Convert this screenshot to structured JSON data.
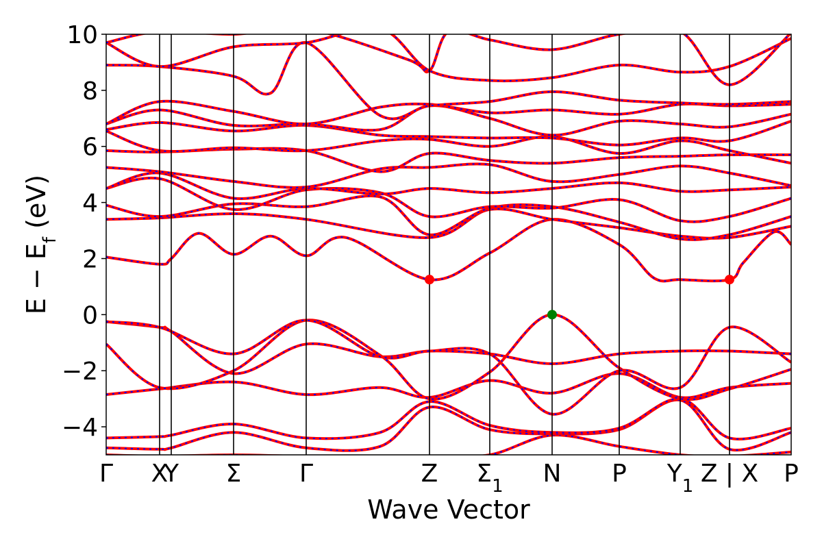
{
  "chart_data": {
    "type": "line",
    "title": "",
    "xlabel": "Wave Vector",
    "ylabel": "E − E",
    "ylabel_subscript": "f",
    "ylabel_unit": " (eV)",
    "ylim": [
      -5,
      10
    ],
    "xlim": [
      0,
      1
    ],
    "grid": false,
    "yticks": [
      {
        "value": -4,
        "label": "−4"
      },
      {
        "value": -2,
        "label": "−2"
      },
      {
        "value": 0,
        "label": "0"
      },
      {
        "value": 2,
        "label": "2"
      },
      {
        "value": 4,
        "label": "4"
      },
      {
        "value": 6,
        "label": "6"
      },
      {
        "value": 8,
        "label": "8"
      },
      {
        "value": 10,
        "label": "10"
      }
    ],
    "kpoints": [
      {
        "x": 0.0,
        "label": "Γ"
      },
      {
        "x": 0.078,
        "label": "X"
      },
      {
        "x": 0.095,
        "label": "Y"
      },
      {
        "x": 0.186,
        "label": "Σ"
      },
      {
        "x": 0.292,
        "label": "Γ"
      },
      {
        "x": 0.472,
        "label": "Z"
      },
      {
        "x": 0.56,
        "label": "Σ",
        "sub": "1"
      },
      {
        "x": 0.651,
        "label": "N"
      },
      {
        "x": 0.749,
        "label": "P"
      },
      {
        "x": 0.838,
        "label": "Y",
        "sub": "1"
      },
      {
        "x": 0.91,
        "label": "Z | X"
      },
      {
        "x": 1.0,
        "label": "P"
      }
    ],
    "series_colors": {
      "red": "#ff0000",
      "blue": "#0000ff"
    },
    "markers": [
      {
        "x": 0.472,
        "y": 1.25,
        "color": "#ff0000"
      },
      {
        "x": 0.91,
        "y": 1.25,
        "color": "#ff0000"
      },
      {
        "x": 0.651,
        "y": 0.0,
        "color": "#008000"
      }
    ],
    "bands": [
      [
        [
          0,
          -5.0
        ],
        [
          0.078,
          -5.05
        ],
        [
          0.186,
          -5.0
        ],
        [
          0.292,
          -5.05
        ],
        [
          0.472,
          -5.05
        ],
        [
          0.56,
          -5.0
        ],
        [
          0.651,
          -4.3
        ],
        [
          0.749,
          -4.7
        ],
        [
          0.838,
          -5.0
        ],
        [
          0.91,
          -5.05
        ],
        [
          1.0,
          -4.9
        ]
      ],
      [
        [
          0,
          -4.75
        ],
        [
          0.078,
          -4.8
        ],
        [
          0.095,
          -4.75
        ],
        [
          0.186,
          -4.2
        ],
        [
          0.292,
          -4.75
        ],
        [
          0.4,
          -4.7
        ],
        [
          0.472,
          -3.3
        ],
        [
          0.56,
          -4.1
        ],
        [
          0.651,
          -4.25
        ],
        [
          0.749,
          -4.1
        ],
        [
          0.838,
          -3.05
        ],
        [
          0.91,
          -4.8
        ],
        [
          1.0,
          -4.2
        ]
      ],
      [
        [
          0,
          -4.4
        ],
        [
          0.078,
          -4.35
        ],
        [
          0.095,
          -4.3
        ],
        [
          0.186,
          -3.9
        ],
        [
          0.292,
          -4.4
        ],
        [
          0.4,
          -4.2
        ],
        [
          0.472,
          -3.1
        ],
        [
          0.56,
          -3.95
        ],
        [
          0.651,
          -4.2
        ],
        [
          0.749,
          -4.05
        ],
        [
          0.838,
          -3.0
        ],
        [
          0.91,
          -4.4
        ],
        [
          1.0,
          -4.05
        ]
      ],
      [
        [
          0,
          -2.85
        ],
        [
          0.078,
          -2.65
        ],
        [
          0.186,
          -2.4
        ],
        [
          0.292,
          -2.85
        ],
        [
          0.4,
          -2.6
        ],
        [
          0.472,
          -2.95
        ],
        [
          0.56,
          -2.35
        ],
        [
          0.651,
          -2.8
        ],
        [
          0.749,
          -2.1
        ],
        [
          0.838,
          -2.95
        ],
        [
          0.91,
          -2.6
        ],
        [
          1.0,
          -2.45
        ]
      ],
      [
        [
          0,
          -1.05
        ],
        [
          0.078,
          -2.6
        ],
        [
          0.186,
          -2.0
        ],
        [
          0.292,
          -0.2
        ],
        [
          0.4,
          -1.45
        ],
        [
          0.472,
          -3.0
        ],
        [
          0.56,
          -2.05
        ],
        [
          0.651,
          0.0
        ],
        [
          0.749,
          -1.9
        ],
        [
          0.838,
          -3.0
        ],
        [
          0.91,
          -2.65
        ],
        [
          1.0,
          -1.95
        ]
      ],
      [
        [
          0,
          -0.25
        ],
        [
          0.078,
          -0.45
        ],
        [
          0.095,
          -0.6
        ],
        [
          0.186,
          -2.1
        ],
        [
          0.292,
          -1.05
        ],
        [
          0.4,
          -1.5
        ],
        [
          0.472,
          -1.3
        ],
        [
          0.56,
          -1.4
        ],
        [
          0.651,
          -1.75
        ],
        [
          0.749,
          -1.4
        ],
        [
          0.838,
          -1.3
        ],
        [
          0.91,
          -1.3
        ],
        [
          1.0,
          -1.4
        ]
      ],
      [
        [
          0,
          -0.25
        ],
        [
          0.078,
          -0.45
        ],
        [
          0.186,
          -1.4
        ],
        [
          0.292,
          -0.2
        ],
        [
          0.4,
          -1.5
        ],
        [
          0.472,
          -1.3
        ],
        [
          0.56,
          -1.4
        ],
        [
          0.651,
          -3.55
        ],
        [
          0.749,
          -2.0
        ],
        [
          0.838,
          -2.6
        ],
        [
          0.91,
          -0.45
        ],
        [
          1.0,
          -1.7
        ]
      ],
      [
        [
          0,
          2.05
        ],
        [
          0.078,
          1.8
        ],
        [
          0.095,
          2.0
        ],
        [
          0.135,
          2.9
        ],
        [
          0.186,
          2.15
        ],
        [
          0.24,
          2.8
        ],
        [
          0.292,
          2.1
        ],
        [
          0.35,
          2.75
        ],
        [
          0.472,
          1.25
        ],
        [
          0.56,
          2.2
        ],
        [
          0.651,
          3.4
        ],
        [
          0.749,
          2.5
        ],
        [
          0.8,
          1.3
        ],
        [
          0.838,
          1.25
        ],
        [
          0.91,
          1.25
        ],
        [
          0.93,
          1.85
        ],
        [
          0.975,
          2.95
        ],
        [
          1.0,
          2.5
        ]
      ],
      [
        [
          0,
          3.4
        ],
        [
          0.078,
          3.45
        ],
        [
          0.186,
          3.6
        ],
        [
          0.292,
          3.4
        ],
        [
          0.472,
          2.75
        ],
        [
          0.56,
          3.75
        ],
        [
          0.651,
          3.4
        ],
        [
          0.749,
          3.1
        ],
        [
          0.838,
          2.8
        ],
        [
          0.91,
          2.75
        ],
        [
          1.0,
          3.15
        ]
      ],
      [
        [
          0,
          3.9
        ],
        [
          0.078,
          3.5
        ],
        [
          0.186,
          3.95
        ],
        [
          0.292,
          3.85
        ],
        [
          0.4,
          4.2
        ],
        [
          0.472,
          2.85
        ],
        [
          0.56,
          3.8
        ],
        [
          0.651,
          3.85
        ],
        [
          0.749,
          3.3
        ],
        [
          0.838,
          2.7
        ],
        [
          0.91,
          2.85
        ],
        [
          1.0,
          3.5
        ]
      ],
      [
        [
          0,
          4.5
        ],
        [
          0.078,
          4.85
        ],
        [
          0.186,
          3.75
        ],
        [
          0.292,
          4.45
        ],
        [
          0.4,
          4.35
        ],
        [
          0.472,
          3.5
        ],
        [
          0.56,
          3.85
        ],
        [
          0.651,
          3.8
        ],
        [
          0.749,
          4.1
        ],
        [
          0.838,
          3.35
        ],
        [
          0.91,
          3.5
        ],
        [
          1.0,
          4.15
        ]
      ],
      [
        [
          0,
          4.5
        ],
        [
          0.078,
          5.05
        ],
        [
          0.186,
          4.15
        ],
        [
          0.292,
          4.5
        ],
        [
          0.4,
          4.3
        ],
        [
          0.472,
          4.5
        ],
        [
          0.56,
          4.35
        ],
        [
          0.651,
          4.5
        ],
        [
          0.749,
          4.7
        ],
        [
          0.838,
          4.4
        ],
        [
          0.91,
          4.45
        ],
        [
          1.0,
          4.55
        ]
      ],
      [
        [
          0,
          5.25
        ],
        [
          0.078,
          5.1
        ],
        [
          0.186,
          4.75
        ],
        [
          0.292,
          4.55
        ],
        [
          0.4,
          5.2
        ],
        [
          0.472,
          5.25
        ],
        [
          0.56,
          5.35
        ],
        [
          0.651,
          4.75
        ],
        [
          0.749,
          5.0
        ],
        [
          0.838,
          5.3
        ],
        [
          0.91,
          5.05
        ],
        [
          1.0,
          4.6
        ]
      ],
      [
        [
          0,
          5.85
        ],
        [
          0.078,
          5.8
        ],
        [
          0.186,
          5.9
        ],
        [
          0.292,
          5.85
        ],
        [
          0.4,
          5.1
        ],
        [
          0.472,
          5.75
        ],
        [
          0.56,
          5.5
        ],
        [
          0.651,
          5.4
        ],
        [
          0.749,
          5.6
        ],
        [
          0.838,
          5.65
        ],
        [
          0.91,
          5.7
        ],
        [
          1.0,
          5.7
        ]
      ],
      [
        [
          0,
          6.55
        ],
        [
          0.078,
          5.85
        ],
        [
          0.186,
          5.95
        ],
        [
          0.292,
          5.85
        ],
        [
          0.4,
          6.2
        ],
        [
          0.472,
          6.25
        ],
        [
          0.56,
          6.0
        ],
        [
          0.651,
          6.35
        ],
        [
          0.749,
          5.75
        ],
        [
          0.838,
          6.2
        ],
        [
          0.91,
          5.85
        ],
        [
          1.0,
          5.4
        ]
      ],
      [
        [
          0,
          6.6
        ],
        [
          0.078,
          6.85
        ],
        [
          0.186,
          6.55
        ],
        [
          0.292,
          6.75
        ],
        [
          0.4,
          6.4
        ],
        [
          0.472,
          6.35
        ],
        [
          0.56,
          6.3
        ],
        [
          0.651,
          6.3
        ],
        [
          0.749,
          6.05
        ],
        [
          0.838,
          6.3
        ],
        [
          0.91,
          6.2
        ],
        [
          1.0,
          6.9
        ]
      ],
      [
        [
          0,
          6.8
        ],
        [
          0.078,
          7.3
        ],
        [
          0.186,
          6.75
        ],
        [
          0.292,
          6.8
        ],
        [
          0.4,
          6.6
        ],
        [
          0.472,
          7.45
        ],
        [
          0.56,
          7.0
        ],
        [
          0.651,
          6.4
        ],
        [
          0.749,
          6.9
        ],
        [
          0.838,
          6.8
        ],
        [
          0.91,
          6.7
        ],
        [
          1.0,
          7.15
        ]
      ],
      [
        [
          0,
          6.8
        ],
        [
          0.078,
          7.6
        ],
        [
          0.186,
          7.25
        ],
        [
          0.292,
          6.8
        ],
        [
          0.4,
          7.4
        ],
        [
          0.472,
          7.5
        ],
        [
          0.56,
          7.2
        ],
        [
          0.651,
          7.3
        ],
        [
          0.749,
          7.15
        ],
        [
          0.838,
          7.5
        ],
        [
          0.91,
          7.45
        ],
        [
          1.0,
          7.5
        ]
      ],
      [
        [
          0,
          8.9
        ],
        [
          0.078,
          8.85
        ],
        [
          0.186,
          8.5
        ],
        [
          0.24,
          7.9
        ],
        [
          0.292,
          9.7
        ],
        [
          0.4,
          7.1
        ],
        [
          0.472,
          7.45
        ],
        [
          0.56,
          7.6
        ],
        [
          0.651,
          7.95
        ],
        [
          0.749,
          7.65
        ],
        [
          0.838,
          7.55
        ],
        [
          0.91,
          7.5
        ],
        [
          1.0,
          7.6
        ]
      ],
      [
        [
          0,
          9.7
        ],
        [
          0.078,
          8.85
        ],
        [
          0.186,
          9.55
        ],
        [
          0.292,
          9.7
        ],
        [
          0.4,
          10.2
        ],
        [
          0.472,
          8.7
        ],
        [
          0.56,
          8.35
        ],
        [
          0.651,
          8.45
        ],
        [
          0.749,
          8.9
        ],
        [
          0.838,
          8.65
        ],
        [
          0.91,
          8.85
        ],
        [
          1.0,
          9.85
        ]
      ],
      [
        [
          0,
          9.7
        ],
        [
          0.078,
          10.1
        ],
        [
          0.186,
          10.0
        ],
        [
          0.292,
          10.2
        ],
        [
          0.44,
          9.1
        ],
        [
          0.472,
          8.7
        ],
        [
          0.5,
          10.1
        ],
        [
          0.56,
          9.8
        ],
        [
          0.651,
          9.45
        ],
        [
          0.749,
          10.0
        ],
        [
          0.838,
          10.1
        ],
        [
          0.91,
          8.2
        ],
        [
          1.0,
          10.05
        ]
      ]
    ]
  }
}
